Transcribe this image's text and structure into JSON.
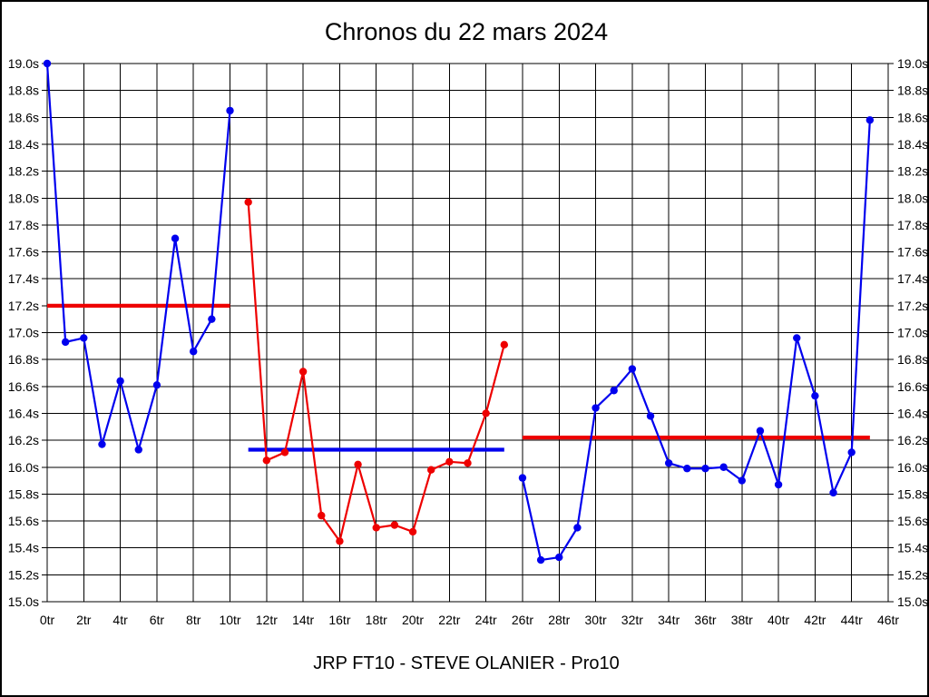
{
  "page": {
    "title": "Chronos du 22 mars 2024",
    "footer": "JRP FT10 - STEVE OLANIER - Pro10"
  },
  "chart_data": {
    "type": "line",
    "title": "Chronos du 22 mars 2024",
    "footer_label": "JRP FT10 - STEVE OLANIER - Pro10",
    "x_unit": "tr",
    "y_unit": "s",
    "xlim": [
      0,
      46
    ],
    "ylim": [
      15.0,
      19.0
    ],
    "x_tick_step": 2,
    "y_tick_step": 0.2,
    "grid": true,
    "x_ticks": [
      "0tr",
      "2tr",
      "4tr",
      "6tr",
      "8tr",
      "10tr",
      "12tr",
      "14tr",
      "16tr",
      "18tr",
      "20tr",
      "22tr",
      "24tr",
      "26tr",
      "28tr",
      "30tr",
      "32tr",
      "34tr",
      "36tr",
      "38tr",
      "40tr",
      "42tr",
      "44tr",
      "46tr"
    ],
    "y_ticks": [
      "19.0s",
      "18.8s",
      "18.6s",
      "18.4s",
      "18.2s",
      "18.0s",
      "17.8s",
      "17.6s",
      "17.4s",
      "17.2s",
      "17.0s",
      "16.8s",
      "16.6s",
      "16.4s",
      "16.2s",
      "16.0s",
      "15.8s",
      "15.6s",
      "15.4s",
      "15.2s",
      "15.0s"
    ],
    "colors": {
      "blue": "#0000ee",
      "red": "#ee0000",
      "grid": "#000000",
      "background": "#ffffff"
    },
    "series": [
      {
        "name": "serie-1-bleue",
        "color": "#0000ee",
        "start_x": 0,
        "values": [
          19.0,
          16.93,
          16.96,
          16.17,
          16.64,
          16.13,
          16.61,
          17.7,
          16.86,
          17.1,
          18.65
        ],
        "average": 17.2,
        "average_color": "#ee0000"
      },
      {
        "name": "serie-2-rouge",
        "color": "#ee0000",
        "start_x": 11,
        "values": [
          17.97,
          16.05,
          16.11,
          16.71,
          15.64,
          15.45,
          16.02,
          15.55,
          15.57,
          15.52,
          15.98,
          16.04,
          16.03,
          16.4,
          16.91
        ],
        "average": 16.13,
        "average_color": "#0000ee"
      },
      {
        "name": "serie-3-bleue",
        "color": "#0000ee",
        "start_x": 26,
        "values": [
          15.92,
          15.31,
          15.33,
          15.55,
          16.44,
          16.57,
          16.73,
          16.38,
          16.03,
          15.99,
          15.99,
          16.0,
          15.9,
          16.27,
          15.87,
          16.96,
          16.53,
          15.81,
          16.11,
          18.58
        ],
        "average": 16.22,
        "average_color": "#ee0000"
      }
    ]
  }
}
